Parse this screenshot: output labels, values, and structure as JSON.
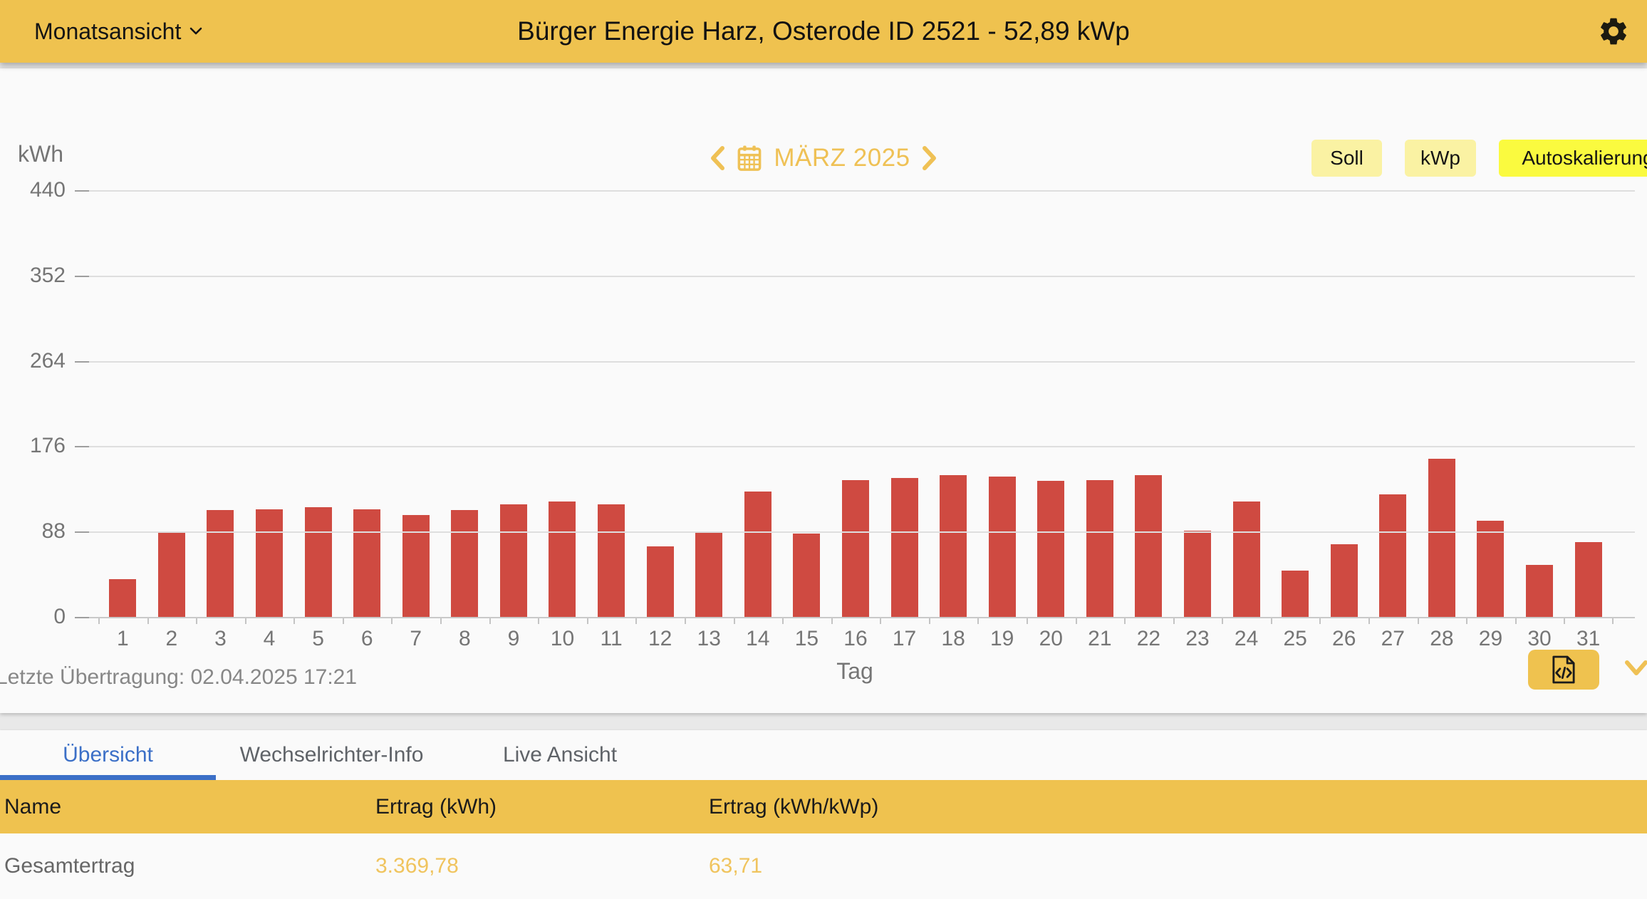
{
  "header": {
    "view_selector": "Monatsansicht",
    "title": "Bürger Energie Harz, Osterode ID 2521 - 52,89 kWp"
  },
  "chart_controls": {
    "month_label": "MÄRZ 2025",
    "buttons": [
      {
        "label": "Soll"
      },
      {
        "label": "kWp"
      },
      {
        "label": "Autoskalierung"
      }
    ]
  },
  "chart_data": {
    "type": "bar",
    "title": "",
    "ylabel": "kWh",
    "xlabel": "Tag",
    "ylim": [
      0,
      440
    ],
    "yticks": [
      440,
      352,
      264,
      176,
      88,
      0
    ],
    "grid": true,
    "categories": [
      1,
      2,
      3,
      4,
      5,
      6,
      7,
      8,
      9,
      10,
      11,
      12,
      13,
      14,
      15,
      16,
      17,
      18,
      19,
      20,
      21,
      22,
      23,
      24,
      25,
      26,
      27,
      28,
      29,
      30,
      31
    ],
    "values": [
      39,
      87,
      110,
      111,
      113,
      111,
      105,
      110,
      116,
      119,
      116,
      73,
      88,
      129,
      86,
      141,
      143,
      146,
      145,
      140,
      141,
      146,
      89,
      119,
      48,
      75,
      126,
      163,
      99,
      54,
      77
    ],
    "series_name": "Ertrag (kWh)"
  },
  "chart_footer": {
    "last_transfer": "Letzte Übertragung: 02.04.2025 17:21"
  },
  "tabs": [
    {
      "label": "Übersicht",
      "active": true
    },
    {
      "label": "Wechselrichter-Info",
      "active": false
    },
    {
      "label": "Live Ansicht",
      "active": false
    }
  ],
  "table": {
    "columns": [
      "Name",
      "Ertrag (kWh)",
      "Ertrag (kWh/kWp)"
    ],
    "rows": [
      {
        "name": "Gesamtertrag",
        "ertrag_kwh": "3.369,78",
        "ertrag_kwh_kwp": "63,71"
      }
    ]
  },
  "colors": {
    "accent_yellow": "#EFC24F",
    "pale_button_yellow": "#FAF2A3",
    "bright_button_yellow": "#FAFA3F",
    "bar_red": "#CF4A41",
    "nav_gold": "#EFC155",
    "value_gold": "#F0C45E",
    "active_tab_blue": "#3B6FC7"
  }
}
